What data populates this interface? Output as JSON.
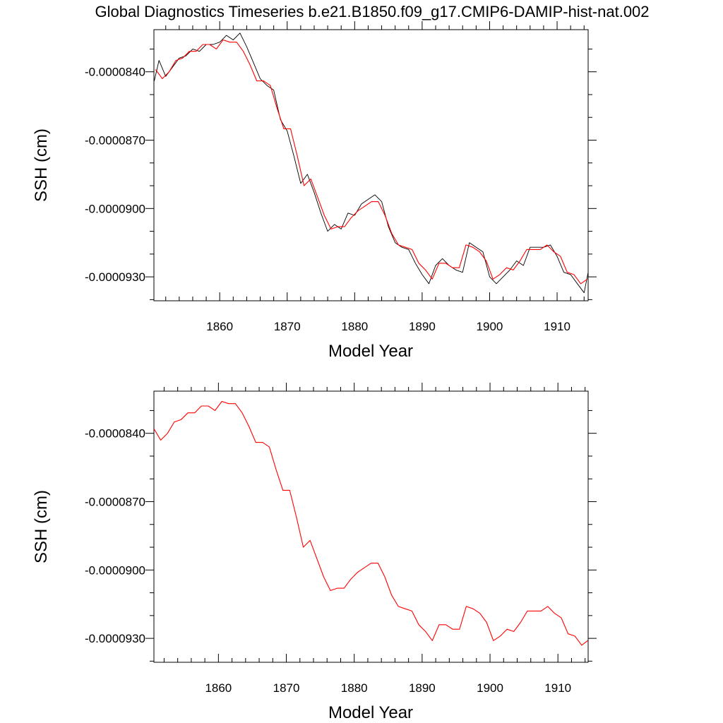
{
  "title": "Global Diagnostics Timeseries b.e21.B1850.f09_g17.CMIP6-DAMIP-hist-nat.002",
  "colors": {
    "monthly": "#000000",
    "annual": "#ff0000",
    "axes": "#000000"
  },
  "chart_data": [
    {
      "type": "line",
      "xlabel": "Model Year",
      "ylabel": "SSH (cm)",
      "xlim": [
        1850.25,
        1914.6
      ],
      "ylim": [
        -9.405e-05,
        -8.215e-05
      ],
      "xticks": [
        1860,
        1870,
        1880,
        1890,
        1900,
        1910
      ],
      "xtick_labels": [
        "1860",
        "1870",
        "1880",
        "1890",
        "1900",
        "1910"
      ],
      "yticks": [
        -8.4e-05,
        -8.7e-05,
        -9e-05,
        -9.3e-05
      ],
      "ytick_labels": [
        "-0.0000840",
        "-0.0000870",
        "-0.0000900",
        "-0.0000930"
      ],
      "series": [
        {
          "kind": "monthly",
          "color": "#000000",
          "x": [
            1850.3,
            1851.0,
            1852.0,
            1853.0,
            1854.0,
            1855.0,
            1856.0,
            1857.0,
            1858.0,
            1859.0,
            1860.0,
            1861.0,
            1862.0,
            1863.0,
            1864.0,
            1865.0,
            1866.0,
            1867.0,
            1868.0,
            1869.0,
            1870.0,
            1871.0,
            1872.0,
            1873.0,
            1874.0,
            1875.0,
            1876.0,
            1877.0,
            1878.0,
            1879.0,
            1880.0,
            1881.0,
            1882.0,
            1883.0,
            1884.0,
            1885.0,
            1886.0,
            1887.0,
            1888.0,
            1889.0,
            1890.0,
            1891.0,
            1892.0,
            1893.0,
            1894.0,
            1895.0,
            1896.0,
            1897.0,
            1898.0,
            1899.0,
            1900.0,
            1901.0,
            1902.0,
            1903.0,
            1904.0,
            1905.0,
            1906.0,
            1907.0,
            1908.0,
            1909.0,
            1910.0,
            1911.0,
            1912.0,
            1913.0,
            1914.0,
            1914.6
          ],
          "y": [
            -8.44e-05,
            -8.35e-05,
            -8.42e-05,
            -8.38e-05,
            -8.34e-05,
            -8.33e-05,
            -8.3e-05,
            -8.31e-05,
            -8.28e-05,
            -8.28e-05,
            -8.27e-05,
            -8.24e-05,
            -8.26e-05,
            -8.23e-05,
            -8.29e-05,
            -8.36e-05,
            -8.43e-05,
            -8.46e-05,
            -8.48e-05,
            -8.61e-05,
            -8.66e-05,
            -8.77e-05,
            -8.89e-05,
            -8.85e-05,
            -8.93e-05,
            -9.02e-05,
            -9.1e-05,
            -9.07e-05,
            -9.09e-05,
            -9.02e-05,
            -9.03e-05,
            -8.98e-05,
            -8.96e-05,
            -8.94e-05,
            -8.97e-05,
            -9.08e-05,
            -9.15e-05,
            -9.17e-05,
            -9.18e-05,
            -9.24e-05,
            -9.29e-05,
            -9.33e-05,
            -9.25e-05,
            -9.22e-05,
            -9.25e-05,
            -9.27e-05,
            -9.28e-05,
            -9.15e-05,
            -9.17e-05,
            -9.19e-05,
            -9.3e-05,
            -9.33e-05,
            -9.3e-05,
            -9.27e-05,
            -9.23e-05,
            -9.25e-05,
            -9.17e-05,
            -9.17e-05,
            -9.17e-05,
            -9.16e-05,
            -9.21e-05,
            -9.28e-05,
            -9.29e-05,
            -9.33e-05,
            -9.37e-05,
            -9.28e-05
          ]
        },
        {
          "kind": "annual",
          "color": "#ff0000",
          "x": [
            1850.5,
            1851.5,
            1852.5,
            1853.5,
            1854.5,
            1855.5,
            1856.5,
            1857.5,
            1858.5,
            1859.5,
            1860.5,
            1861.5,
            1862.5,
            1863.5,
            1864.5,
            1865.5,
            1866.5,
            1867.5,
            1868.5,
            1869.5,
            1870.5,
            1871.5,
            1872.5,
            1873.5,
            1874.5,
            1875.5,
            1876.5,
            1877.5,
            1878.5,
            1879.5,
            1880.5,
            1881.5,
            1882.5,
            1883.5,
            1884.5,
            1885.5,
            1886.5,
            1887.5,
            1888.5,
            1889.5,
            1890.5,
            1891.5,
            1892.5,
            1893.5,
            1894.5,
            1895.5,
            1896.5,
            1897.5,
            1898.5,
            1899.5,
            1900.5,
            1901.5,
            1902.5,
            1903.5,
            1904.5,
            1905.5,
            1906.5,
            1907.5,
            1908.5,
            1909.5,
            1910.5,
            1911.5,
            1912.5,
            1913.5,
            1914.5
          ],
          "y": [
            -8.39e-05,
            -8.43e-05,
            -8.4e-05,
            -8.35e-05,
            -8.34e-05,
            -8.31e-05,
            -8.31e-05,
            -8.28e-05,
            -8.28e-05,
            -8.3e-05,
            -8.26e-05,
            -8.27e-05,
            -8.27e-05,
            -8.31e-05,
            -8.37e-05,
            -8.44e-05,
            -8.44e-05,
            -8.46e-05,
            -8.56e-05,
            -8.65e-05,
            -8.65e-05,
            -8.77e-05,
            -8.9e-05,
            -8.87e-05,
            -8.95e-05,
            -9.03e-05,
            -9.09e-05,
            -9.08e-05,
            -9.08e-05,
            -9.04e-05,
            -9.01e-05,
            -8.99e-05,
            -8.97e-05,
            -8.97e-05,
            -9.03e-05,
            -9.11e-05,
            -9.16e-05,
            -9.17e-05,
            -9.18e-05,
            -9.24e-05,
            -9.27e-05,
            -9.31e-05,
            -9.24e-05,
            -9.24e-05,
            -9.26e-05,
            -9.26e-05,
            -9.16e-05,
            -9.17e-05,
            -9.19e-05,
            -9.23e-05,
            -9.31e-05,
            -9.29e-05,
            -9.26e-05,
            -9.27e-05,
            -9.23e-05,
            -9.18e-05,
            -9.18e-05,
            -9.18e-05,
            -9.16e-05,
            -9.19e-05,
            -9.21e-05,
            -9.28e-05,
            -9.29e-05,
            -9.33e-05,
            -9.31e-05
          ]
        }
      ]
    },
    {
      "type": "line",
      "xlabel": "Model Year",
      "ylabel": "SSH (cm)",
      "xlim": [
        1850.5,
        1914.45
      ],
      "ylim": [
        -9.405e-05,
        -8.215e-05
      ],
      "xticks": [
        1860,
        1870,
        1880,
        1890,
        1900,
        1910
      ],
      "xtick_labels": [
        "1860",
        "1870",
        "1880",
        "1890",
        "1900",
        "1910"
      ],
      "yticks": [
        -8.4e-05,
        -8.7e-05,
        -9e-05,
        -9.3e-05
      ],
      "ytick_labels": [
        "-0.0000840",
        "-0.0000870",
        "-0.0000900",
        "-0.0000930"
      ],
      "series": [
        {
          "kind": "annual",
          "color": "#ff0000",
          "x": [
            1850.5,
            1851.5,
            1852.5,
            1853.5,
            1854.5,
            1855.5,
            1856.5,
            1857.5,
            1858.5,
            1859.5,
            1860.5,
            1861.5,
            1862.5,
            1863.5,
            1864.5,
            1865.5,
            1866.5,
            1867.5,
            1868.5,
            1869.5,
            1870.5,
            1871.5,
            1872.5,
            1873.5,
            1874.5,
            1875.5,
            1876.5,
            1877.5,
            1878.5,
            1879.5,
            1880.5,
            1881.5,
            1882.5,
            1883.5,
            1884.5,
            1885.5,
            1886.5,
            1887.5,
            1888.5,
            1889.5,
            1890.5,
            1891.5,
            1892.5,
            1893.5,
            1894.5,
            1895.5,
            1896.5,
            1897.5,
            1898.5,
            1899.5,
            1900.5,
            1901.5,
            1902.5,
            1903.5,
            1904.5,
            1905.5,
            1906.5,
            1907.5,
            1908.5,
            1909.5,
            1910.5,
            1911.5,
            1912.5,
            1913.5,
            1914.4
          ],
          "y": [
            -8.38e-05,
            -8.43e-05,
            -8.4e-05,
            -8.35e-05,
            -8.34e-05,
            -8.31e-05,
            -8.31e-05,
            -8.28e-05,
            -8.28e-05,
            -8.3e-05,
            -8.26e-05,
            -8.27e-05,
            -8.27e-05,
            -8.31e-05,
            -8.37e-05,
            -8.44e-05,
            -8.44e-05,
            -8.46e-05,
            -8.56e-05,
            -8.65e-05,
            -8.65e-05,
            -8.77e-05,
            -8.9e-05,
            -8.87e-05,
            -8.95e-05,
            -9.03e-05,
            -9.09e-05,
            -9.08e-05,
            -9.08e-05,
            -9.04e-05,
            -9.01e-05,
            -8.99e-05,
            -8.97e-05,
            -8.97e-05,
            -9.03e-05,
            -9.11e-05,
            -9.16e-05,
            -9.17e-05,
            -9.18e-05,
            -9.24e-05,
            -9.27e-05,
            -9.31e-05,
            -9.24e-05,
            -9.24e-05,
            -9.26e-05,
            -9.26e-05,
            -9.16e-05,
            -9.17e-05,
            -9.19e-05,
            -9.23e-05,
            -9.31e-05,
            -9.29e-05,
            -9.26e-05,
            -9.27e-05,
            -9.23e-05,
            -9.18e-05,
            -9.18e-05,
            -9.18e-05,
            -9.16e-05,
            -9.19e-05,
            -9.21e-05,
            -9.28e-05,
            -9.29e-05,
            -9.33e-05,
            -9.31e-05
          ]
        }
      ]
    }
  ]
}
